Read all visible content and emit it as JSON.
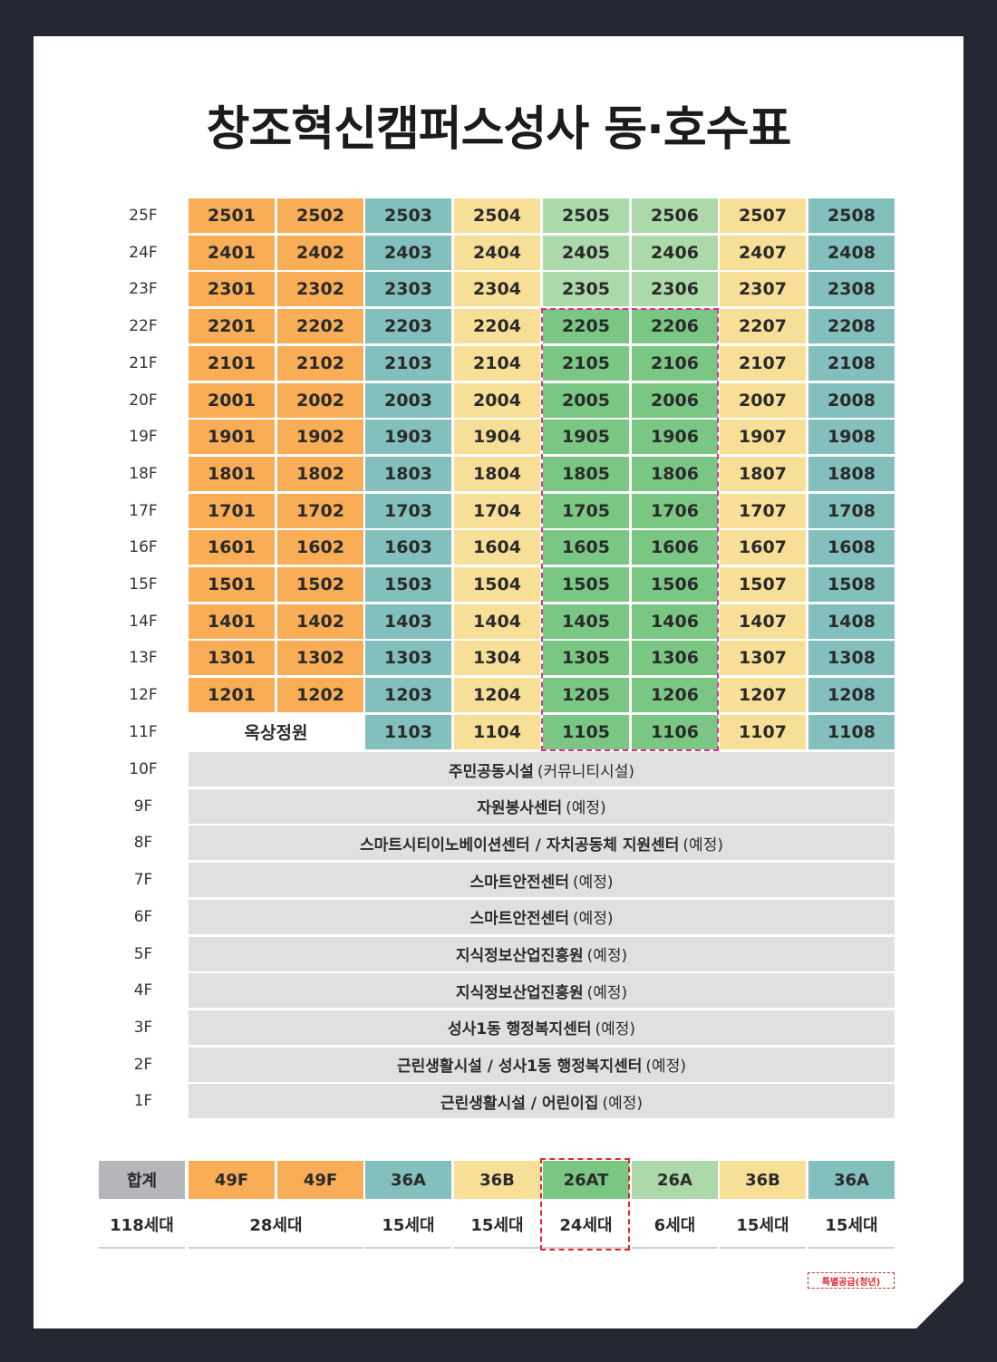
{
  "title": "창조혁신캠퍼스성사 동·호수표",
  "colors": {
    "orange": "#f8ad56",
    "teal": "#82bfbd",
    "yellow": "#f8df98",
    "light_green": "#acd9a9",
    "green": "#7ac784",
    "facility_gray": "#dfe0e2",
    "highlight_pink": "#e32b8c",
    "special_red": "#e2262c"
  },
  "unit_floors": [
    {
      "label": "25F",
      "units": [
        "2501",
        "2502",
        "2503",
        "2504",
        "2505",
        "2506",
        "2507",
        "2508"
      ],
      "colors": [
        "orange",
        "orange",
        "teal",
        "yellow",
        "light_green",
        "light_green",
        "yellow",
        "teal"
      ]
    },
    {
      "label": "24F",
      "units": [
        "2401",
        "2402",
        "2403",
        "2404",
        "2405",
        "2406",
        "2407",
        "2408"
      ],
      "colors": [
        "orange",
        "orange",
        "teal",
        "yellow",
        "light_green",
        "light_green",
        "yellow",
        "teal"
      ]
    },
    {
      "label": "23F",
      "units": [
        "2301",
        "2302",
        "2303",
        "2304",
        "2305",
        "2306",
        "2307",
        "2308"
      ],
      "colors": [
        "orange",
        "orange",
        "teal",
        "yellow",
        "light_green",
        "light_green",
        "yellow",
        "teal"
      ]
    },
    {
      "label": "22F",
      "units": [
        "2201",
        "2202",
        "2203",
        "2204",
        "2205",
        "2206",
        "2207",
        "2208"
      ],
      "colors": [
        "orange",
        "orange",
        "teal",
        "yellow",
        "green",
        "green",
        "yellow",
        "teal"
      ]
    },
    {
      "label": "21F",
      "units": [
        "2101",
        "2102",
        "2103",
        "2104",
        "2105",
        "2106",
        "2107",
        "2108"
      ],
      "colors": [
        "orange",
        "orange",
        "teal",
        "yellow",
        "green",
        "green",
        "yellow",
        "teal"
      ]
    },
    {
      "label": "20F",
      "units": [
        "2001",
        "2002",
        "2003",
        "2004",
        "2005",
        "2006",
        "2007",
        "2008"
      ],
      "colors": [
        "orange",
        "orange",
        "teal",
        "yellow",
        "green",
        "green",
        "yellow",
        "teal"
      ]
    },
    {
      "label": "19F",
      "units": [
        "1901",
        "1902",
        "1903",
        "1904",
        "1905",
        "1906",
        "1907",
        "1908"
      ],
      "colors": [
        "orange",
        "orange",
        "teal",
        "yellow",
        "green",
        "green",
        "yellow",
        "teal"
      ]
    },
    {
      "label": "18F",
      "units": [
        "1801",
        "1802",
        "1803",
        "1804",
        "1805",
        "1806",
        "1807",
        "1808"
      ],
      "colors": [
        "orange",
        "orange",
        "teal",
        "yellow",
        "green",
        "green",
        "yellow",
        "teal"
      ]
    },
    {
      "label": "17F",
      "units": [
        "1701",
        "1702",
        "1703",
        "1704",
        "1705",
        "1706",
        "1707",
        "1708"
      ],
      "colors": [
        "orange",
        "orange",
        "teal",
        "yellow",
        "green",
        "green",
        "yellow",
        "teal"
      ]
    },
    {
      "label": "16F",
      "units": [
        "1601",
        "1602",
        "1603",
        "1604",
        "1605",
        "1606",
        "1607",
        "1608"
      ],
      "colors": [
        "orange",
        "orange",
        "teal",
        "yellow",
        "green",
        "green",
        "yellow",
        "teal"
      ]
    },
    {
      "label": "15F",
      "units": [
        "1501",
        "1502",
        "1503",
        "1504",
        "1505",
        "1506",
        "1507",
        "1508"
      ],
      "colors": [
        "orange",
        "orange",
        "teal",
        "yellow",
        "green",
        "green",
        "yellow",
        "teal"
      ]
    },
    {
      "label": "14F",
      "units": [
        "1401",
        "1402",
        "1403",
        "1404",
        "1405",
        "1406",
        "1407",
        "1408"
      ],
      "colors": [
        "orange",
        "orange",
        "teal",
        "yellow",
        "green",
        "green",
        "yellow",
        "teal"
      ]
    },
    {
      "label": "13F",
      "units": [
        "1301",
        "1302",
        "1303",
        "1304",
        "1305",
        "1306",
        "1307",
        "1308"
      ],
      "colors": [
        "orange",
        "orange",
        "teal",
        "yellow",
        "green",
        "green",
        "yellow",
        "teal"
      ]
    },
    {
      "label": "12F",
      "units": [
        "1201",
        "1202",
        "1203",
        "1204",
        "1205",
        "1206",
        "1207",
        "1208"
      ],
      "colors": [
        "orange",
        "orange",
        "teal",
        "yellow",
        "green",
        "green",
        "yellow",
        "teal"
      ]
    }
  ],
  "floor_11": {
    "label": "11F",
    "garden": "옥상정원",
    "units": [
      "1103",
      "1104",
      "1105",
      "1106",
      "1107",
      "1108"
    ],
    "colors": [
      "teal",
      "yellow",
      "green",
      "green",
      "yellow",
      "teal"
    ]
  },
  "facility_floors": [
    {
      "label": "10F",
      "name": "주민공동시설",
      "note": "(커뮤니티시설)"
    },
    {
      "label": "9F",
      "name": "자원봉사센터",
      "note": "(예정)"
    },
    {
      "label": "8F",
      "name": "스마트시티이노베이션센터 / 자치공동체 지원센터",
      "note": "(예정)"
    },
    {
      "label": "7F",
      "name": "스마트안전센터",
      "note": "(예정)"
    },
    {
      "label": "6F",
      "name": "스마트안전센터",
      "note": "(예정)"
    },
    {
      "label": "5F",
      "name": "지식정보산업진흥원",
      "note": "(예정)"
    },
    {
      "label": "4F",
      "name": "지식정보산업진흥원",
      "note": "(예정)"
    },
    {
      "label": "3F",
      "name": "성사1동 행정복지센터",
      "note": "(예정)"
    },
    {
      "label": "2F",
      "name": "근린생활시설 / 성사1동 행정복지센터",
      "note": "(예정)"
    },
    {
      "label": "1F",
      "name": "근린생활시설 / 어린이집",
      "note": "(예정)"
    }
  ],
  "summary": {
    "total_label": "합계",
    "total_value": "118세대",
    "types": [
      {
        "label": "49F",
        "color": "orange"
      },
      {
        "label": "49F",
        "color": "orange"
      },
      {
        "label": "36A",
        "color": "teal"
      },
      {
        "label": "36B",
        "color": "yellow"
      },
      {
        "label": "26AT",
        "color": "green"
      },
      {
        "label": "26A",
        "color": "light_green"
      },
      {
        "label": "36B",
        "color": "yellow"
      },
      {
        "label": "36A",
        "color": "teal"
      }
    ],
    "counts": [
      "28세대",
      "15세대",
      "15세대",
      "24세대",
      "6세대",
      "15세대",
      "15세대"
    ]
  },
  "legend": {
    "special_supply": "특별공급(청년)"
  }
}
